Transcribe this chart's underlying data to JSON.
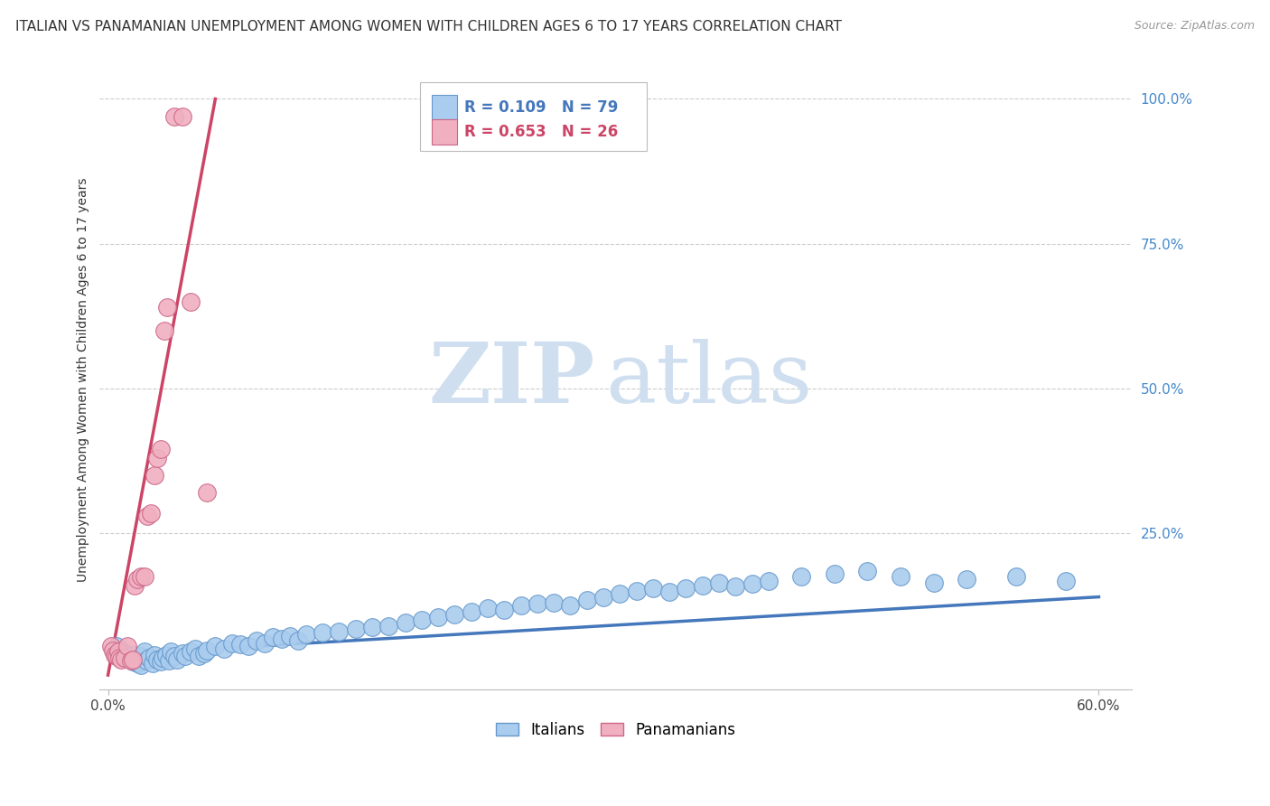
{
  "title": "ITALIAN VS PANAMANIAN UNEMPLOYMENT AMONG WOMEN WITH CHILDREN AGES 6 TO 17 YEARS CORRELATION CHART",
  "source": "Source: ZipAtlas.com",
  "ylabel": "Unemployment Among Women with Children Ages 6 to 17 years",
  "legend_blue_r": "R = 0.109",
  "legend_blue_n": "N = 79",
  "legend_pink_r": "R = 0.653",
  "legend_pink_n": "N = 26",
  "legend_label_blue": "Italians",
  "legend_label_pink": "Panamanians",
  "xlim": [
    -0.005,
    0.62
  ],
  "ylim": [
    -0.02,
    1.05
  ],
  "xticks": [
    0.0,
    0.6
  ],
  "xtick_labels": [
    "0.0%",
    "60.0%"
  ],
  "yticks": [
    0.25,
    0.5,
    0.75,
    1.0
  ],
  "ytick_labels": [
    "25.0%",
    "50.0%",
    "75.0%",
    "100.0%"
  ],
  "color_blue": "#aaccee",
  "color_blue_edge": "#6699cc",
  "color_pink": "#f0b0c0",
  "color_pink_edge": "#cc6688",
  "color_blue_line": "#4477bb",
  "color_pink_line": "#cc4466",
  "background_color": "#ffffff",
  "grid_color": "#cccccc",
  "blue_x": [
    0.005,
    0.008,
    0.01,
    0.012,
    0.013,
    0.015,
    0.015,
    0.017,
    0.018,
    0.02,
    0.02,
    0.022,
    0.023,
    0.025,
    0.027,
    0.028,
    0.03,
    0.032,
    0.033,
    0.035,
    0.037,
    0.038,
    0.04,
    0.042,
    0.045,
    0.047,
    0.05,
    0.053,
    0.055,
    0.058,
    0.06,
    0.065,
    0.07,
    0.075,
    0.08,
    0.085,
    0.09,
    0.095,
    0.1,
    0.105,
    0.11,
    0.115,
    0.12,
    0.13,
    0.14,
    0.15,
    0.16,
    0.17,
    0.18,
    0.19,
    0.2,
    0.21,
    0.22,
    0.23,
    0.24,
    0.25,
    0.26,
    0.27,
    0.28,
    0.29,
    0.3,
    0.31,
    0.32,
    0.33,
    0.34,
    0.35,
    0.36,
    0.37,
    0.38,
    0.39,
    0.4,
    0.42,
    0.44,
    0.46,
    0.48,
    0.5,
    0.52,
    0.55,
    0.58
  ],
  "blue_y": [
    0.055,
    0.048,
    0.042,
    0.038,
    0.035,
    0.04,
    0.028,
    0.032,
    0.025,
    0.038,
    0.022,
    0.045,
    0.03,
    0.035,
    0.025,
    0.04,
    0.032,
    0.028,
    0.035,
    0.04,
    0.03,
    0.045,
    0.038,
    0.032,
    0.042,
    0.038,
    0.045,
    0.05,
    0.038,
    0.042,
    0.048,
    0.055,
    0.05,
    0.06,
    0.058,
    0.055,
    0.065,
    0.06,
    0.07,
    0.068,
    0.072,
    0.065,
    0.075,
    0.078,
    0.08,
    0.085,
    0.088,
    0.09,
    0.095,
    0.1,
    0.105,
    0.11,
    0.115,
    0.12,
    0.118,
    0.125,
    0.128,
    0.13,
    0.125,
    0.135,
    0.14,
    0.145,
    0.15,
    0.155,
    0.148,
    0.155,
    0.16,
    0.165,
    0.158,
    0.162,
    0.168,
    0.175,
    0.18,
    0.185,
    0.175,
    0.165,
    0.17,
    0.175,
    0.168
  ],
  "pink_x": [
    0.002,
    0.003,
    0.004,
    0.005,
    0.006,
    0.007,
    0.008,
    0.01,
    0.012,
    0.014,
    0.015,
    0.016,
    0.018,
    0.02,
    0.022,
    0.024,
    0.026,
    0.028,
    0.03,
    0.032,
    0.034,
    0.036,
    0.04,
    0.045,
    0.05,
    0.06
  ],
  "pink_y": [
    0.055,
    0.048,
    0.04,
    0.038,
    0.045,
    0.035,
    0.032,
    0.035,
    0.055,
    0.03,
    0.032,
    0.16,
    0.17,
    0.175,
    0.175,
    0.28,
    0.285,
    0.35,
    0.38,
    0.395,
    0.6,
    0.64,
    0.97,
    0.97,
    0.65,
    0.32
  ],
  "blue_trend_x": [
    0.0,
    0.6
  ],
  "blue_trend_y": [
    0.04,
    0.14
  ],
  "pink_trend_x": [
    0.0,
    0.065
  ],
  "pink_trend_y": [
    0.005,
    1.0
  ],
  "title_fontsize": 11,
  "axis_fontsize": 10,
  "tick_fontsize": 11,
  "watermark_zip": "ZIP",
  "watermark_atlas": "atlas",
  "watermark_color": "#d0dff0"
}
